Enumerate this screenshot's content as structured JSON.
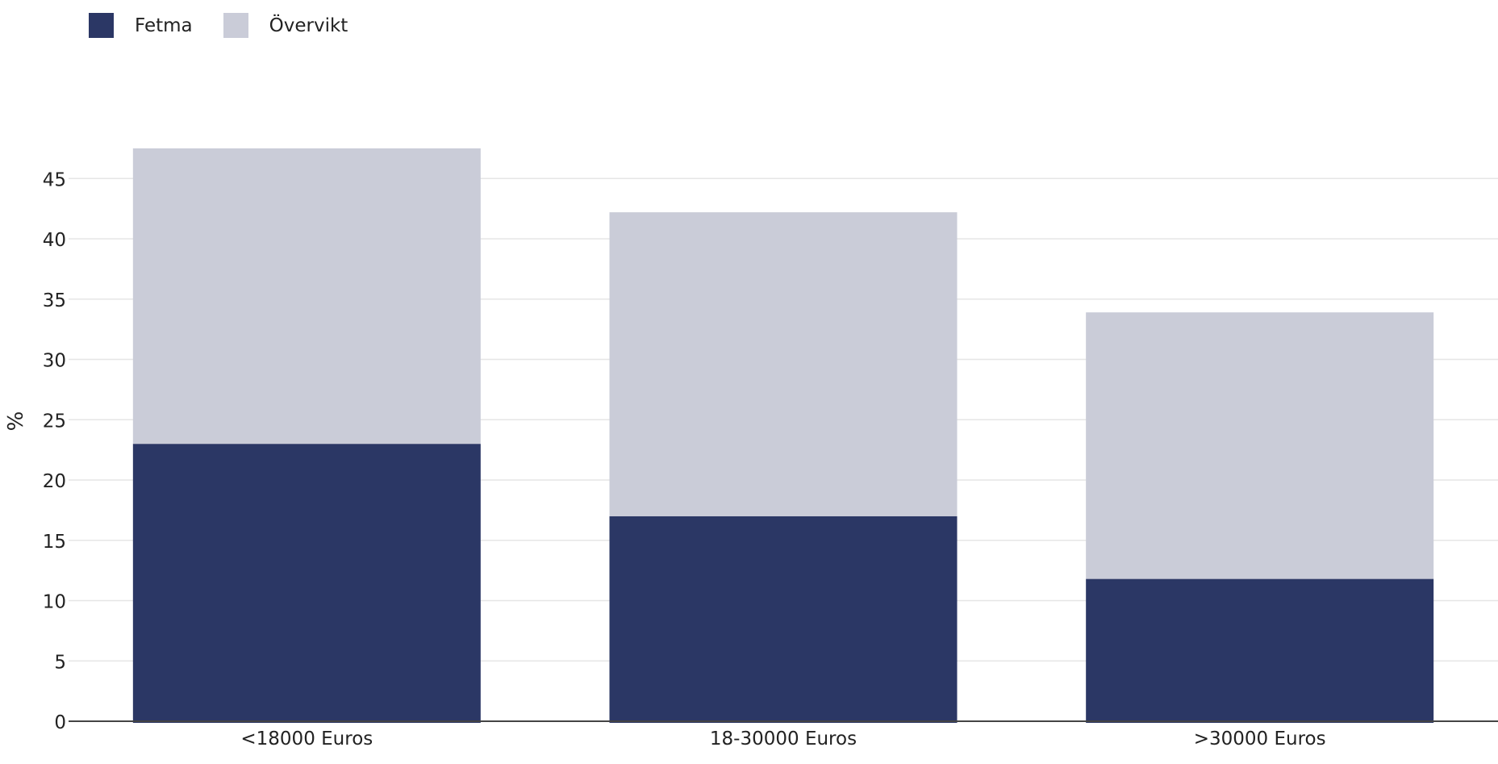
{
  "chart_data": {
    "type": "bar",
    "stacked": true,
    "categories": [
      "<18000 Euros",
      "18-30000 Euros",
      ">30000 Euros"
    ],
    "series": [
      {
        "name": "Fetma",
        "values": [
          23.0,
          17.0,
          11.8
        ],
        "color": "#2b3765"
      },
      {
        "name": "Övervikt",
        "values": [
          24.5,
          25.2,
          22.1
        ],
        "color": "#caccd8"
      }
    ],
    "ylabel": "%",
    "xlabel": "",
    "ylim": [
      0,
      47.5
    ],
    "yticks": [
      0,
      5,
      10,
      15,
      20,
      25,
      30,
      35,
      40,
      45
    ],
    "grid": true,
    "legend_position": "top-left"
  }
}
